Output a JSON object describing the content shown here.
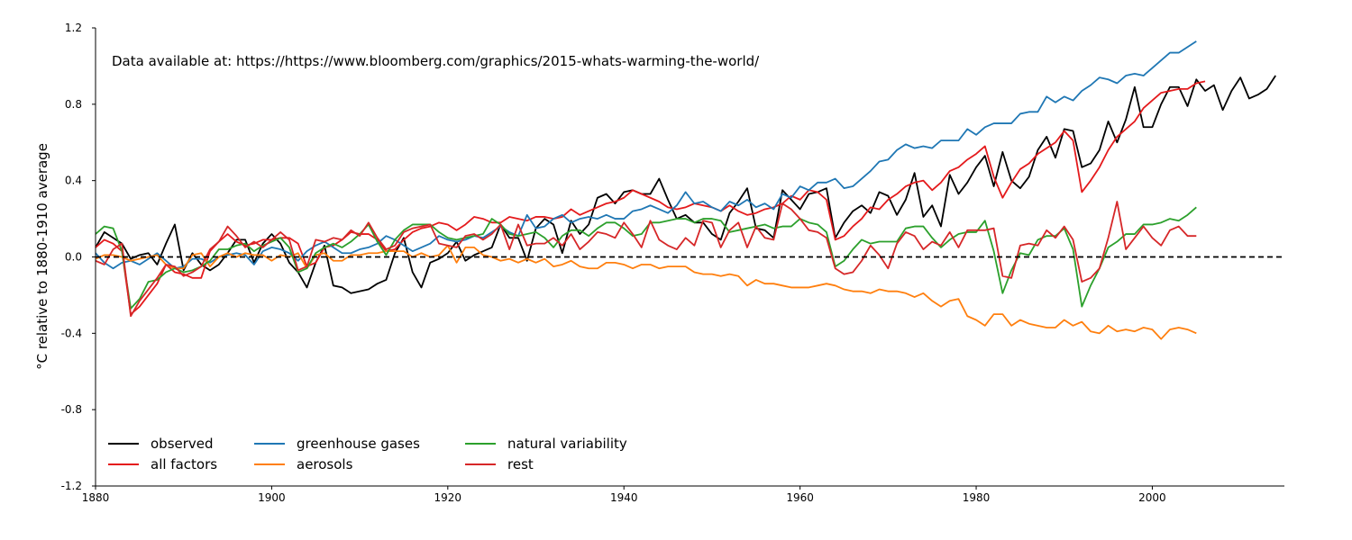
{
  "chart_data": {
    "type": "line",
    "title": "",
    "annotation": "Data available at: https://https://www.bloomberg.com/graphics/2015-whats-warming-the-world/",
    "xlabel": "",
    "ylabel": "$^\\circ C$ relative to 1880-1910 average",
    "ylabel_display": "°C relative to 1880-1910 average",
    "xlim": [
      1880,
      2015
    ],
    "ylim": [
      -1.2,
      1.2
    ],
    "x_ticks": [
      1880,
      1900,
      1920,
      1940,
      1960,
      1980,
      2000
    ],
    "x_tick_labels": [
      "1880",
      "1900",
      "1920",
      "1940",
      "1960",
      "1980",
      "2000"
    ],
    "y_ticks": [
      -1.2,
      -0.8,
      -0.4,
      0.0,
      0.4,
      0.8,
      1.2
    ],
    "y_tick_labels": [
      "-1.2",
      "-0.8",
      "-0.4",
      "0.0",
      "0.4",
      "0.8",
      "1.2"
    ],
    "reference_line": {
      "y": 0.0,
      "style": "dashed",
      "color": "#000000"
    },
    "grid": false,
    "legend": {
      "placement": "bottom-left",
      "columns": 3
    },
    "series": [
      {
        "name": "observed",
        "color": "#000000",
        "x_start": 1880,
        "values": [
          0.05,
          0.13,
          0.1,
          0.07,
          -0.01,
          0.01,
          0.02,
          -0.04,
          0.07,
          0.17,
          -0.07,
          0.02,
          -0.04,
          -0.07,
          -0.04,
          0.02,
          0.09,
          0.09,
          -0.03,
          0.07,
          0.12,
          0.07,
          -0.03,
          -0.08,
          -0.16,
          -0.03,
          0.06,
          -0.15,
          -0.16,
          -0.19,
          -0.18,
          -0.17,
          -0.14,
          -0.12,
          0.02,
          0.1,
          -0.08,
          -0.16,
          -0.03,
          -0.01,
          0.02,
          0.08,
          -0.02,
          0.01,
          0.03,
          0.05,
          0.17,
          0.1,
          0.1,
          -0.02,
          0.15,
          0.2,
          0.17,
          0.02,
          0.19,
          0.12,
          0.17,
          0.31,
          0.33,
          0.28,
          0.34,
          0.35,
          0.33,
          0.33,
          0.41,
          0.3,
          0.2,
          0.22,
          0.18,
          0.18,
          0.12,
          0.09,
          0.23,
          0.29,
          0.36,
          0.15,
          0.14,
          0.1,
          0.35,
          0.3,
          0.25,
          0.33,
          0.34,
          0.36,
          0.1,
          0.18,
          0.24,
          0.27,
          0.23,
          0.34,
          0.32,
          0.22,
          0.3,
          0.44,
          0.21,
          0.27,
          0.16,
          0.43,
          0.33,
          0.39,
          0.47,
          0.53,
          0.37,
          0.55,
          0.4,
          0.36,
          0.42,
          0.56,
          0.63,
          0.52,
          0.67,
          0.66,
          0.47,
          0.49,
          0.56,
          0.71,
          0.6,
          0.72,
          0.89,
          0.68,
          0.68,
          0.8,
          0.89,
          0.89,
          0.79,
          0.93,
          0.87,
          0.9,
          0.77,
          0.87,
          0.94,
          0.83,
          0.85,
          0.88,
          0.95
        ]
      },
      {
        "name": "all factors",
        "color": "#e41a1c",
        "x_start": 1880,
        "values": [
          0.05,
          0.09,
          0.07,
          0.03,
          -0.3,
          -0.26,
          -0.2,
          -0.14,
          -0.04,
          -0.08,
          -0.09,
          -0.11,
          -0.11,
          0.03,
          0.08,
          0.12,
          0.08,
          0.06,
          0.07,
          0.09,
          0.09,
          0.1,
          0.1,
          0.07,
          -0.05,
          -0.03,
          0.05,
          0.06,
          0.09,
          0.13,
          0.12,
          0.12,
          0.09,
          0.03,
          0.04,
          0.09,
          0.13,
          0.15,
          0.16,
          0.18,
          0.17,
          0.14,
          0.17,
          0.21,
          0.2,
          0.18,
          0.18,
          0.21,
          0.2,
          0.19,
          0.21,
          0.21,
          0.2,
          0.21,
          0.25,
          0.22,
          0.24,
          0.26,
          0.28,
          0.29,
          0.31,
          0.35,
          0.33,
          0.31,
          0.29,
          0.26,
          0.25,
          0.26,
          0.28,
          0.27,
          0.26,
          0.24,
          0.27,
          0.24,
          0.22,
          0.23,
          0.25,
          0.26,
          0.28,
          0.32,
          0.3,
          0.35,
          0.34,
          0.3,
          0.09,
          0.11,
          0.16,
          0.2,
          0.26,
          0.25,
          0.3,
          0.33,
          0.37,
          0.39,
          0.4,
          0.35,
          0.39,
          0.45,
          0.47,
          0.51,
          0.54,
          0.58,
          0.42,
          0.31,
          0.39,
          0.46,
          0.49,
          0.54,
          0.57,
          0.6,
          0.66,
          0.61,
          0.34,
          0.4,
          0.47,
          0.56,
          0.63,
          0.67,
          0.71,
          0.78,
          0.82,
          0.86,
          0.87,
          0.88,
          0.88,
          0.91,
          0.92
        ]
      },
      {
        "name": "greenhouse gases",
        "color": "#1f77b4",
        "x_start": 1880,
        "values": [
          0.02,
          -0.03,
          -0.06,
          -0.03,
          -0.02,
          -0.04,
          -0.01,
          0.02,
          -0.02,
          -0.06,
          -0.05,
          -0.01,
          -0.01,
          -0.03,
          0.0,
          0.01,
          0.02,
          0.01,
          -0.04,
          0.03,
          0.05,
          0.04,
          0.02,
          -0.02,
          0.03,
          0.06,
          0.08,
          0.05,
          0.02,
          0.02,
          0.04,
          0.05,
          0.07,
          0.11,
          0.09,
          0.06,
          0.03,
          0.05,
          0.07,
          0.11,
          0.09,
          0.08,
          0.09,
          0.11,
          0.1,
          0.13,
          0.16,
          0.13,
          0.11,
          0.22,
          0.15,
          0.16,
          0.2,
          0.22,
          0.18,
          0.2,
          0.21,
          0.2,
          0.22,
          0.2,
          0.2,
          0.24,
          0.25,
          0.27,
          0.25,
          0.23,
          0.27,
          0.34,
          0.28,
          0.29,
          0.26,
          0.24,
          0.29,
          0.27,
          0.3,
          0.26,
          0.28,
          0.25,
          0.33,
          0.31,
          0.37,
          0.35,
          0.39,
          0.39,
          0.41,
          0.36,
          0.37,
          0.41,
          0.45,
          0.5,
          0.51,
          0.56,
          0.59,
          0.57,
          0.58,
          0.57,
          0.61,
          0.61,
          0.61,
          0.67,
          0.64,
          0.68,
          0.7,
          0.7,
          0.7,
          0.75,
          0.76,
          0.76,
          0.84,
          0.81,
          0.84,
          0.82,
          0.87,
          0.9,
          0.94,
          0.93,
          0.91,
          0.95,
          0.96,
          0.95,
          0.99,
          1.03,
          1.07,
          1.07,
          1.1,
          1.13
        ]
      },
      {
        "name": "aerosols",
        "color": "#ff7f0e",
        "x_start": 1880,
        "values": [
          -0.01,
          0.01,
          0.01,
          0.0,
          -0.02,
          -0.01,
          0.0,
          0.01,
          -0.04,
          -0.06,
          -0.06,
          0.01,
          0.02,
          -0.05,
          0.0,
          0.02,
          0.0,
          0.02,
          0.01,
          0.01,
          -0.02,
          0.01,
          0.0,
          0.02,
          -0.06,
          0.01,
          0.02,
          -0.02,
          -0.02,
          0.01,
          0.01,
          0.02,
          0.02,
          0.03,
          0.03,
          0.03,
          0.0,
          0.02,
          0.0,
          0.01,
          0.06,
          -0.03,
          0.05,
          0.05,
          0.01,
          0.0,
          -0.02,
          -0.01,
          -0.03,
          -0.01,
          -0.03,
          -0.01,
          -0.05,
          -0.04,
          -0.02,
          -0.05,
          -0.06,
          -0.06,
          -0.03,
          -0.03,
          -0.04,
          -0.06,
          -0.04,
          -0.04,
          -0.06,
          -0.05,
          -0.05,
          -0.05,
          -0.08,
          -0.09,
          -0.09,
          -0.1,
          -0.09,
          -0.1,
          -0.15,
          -0.12,
          -0.14,
          -0.14,
          -0.15,
          -0.16,
          -0.16,
          -0.16,
          -0.15,
          -0.14,
          -0.15,
          -0.17,
          -0.18,
          -0.18,
          -0.19,
          -0.17,
          -0.18,
          -0.18,
          -0.19,
          -0.21,
          -0.19,
          -0.23,
          -0.26,
          -0.23,
          -0.22,
          -0.31,
          -0.33,
          -0.36,
          -0.3,
          -0.3,
          -0.36,
          -0.33,
          -0.35,
          -0.36,
          -0.37,
          -0.37,
          -0.33,
          -0.36,
          -0.34,
          -0.39,
          -0.4,
          -0.36,
          -0.39,
          -0.38,
          -0.39,
          -0.37,
          -0.38,
          -0.43,
          -0.38,
          -0.37,
          -0.38,
          -0.4
        ]
      },
      {
        "name": "natural variability",
        "color": "#2ca02c",
        "x_start": 1880,
        "values": [
          0.12,
          0.16,
          0.15,
          0.03,
          -0.27,
          -0.22,
          -0.13,
          -0.12,
          -0.08,
          -0.06,
          -0.08,
          -0.07,
          -0.05,
          -0.02,
          0.04,
          0.04,
          0.06,
          0.07,
          0.03,
          0.06,
          0.08,
          0.1,
          0.05,
          -0.08,
          -0.06,
          0.02,
          0.05,
          0.07,
          0.05,
          0.08,
          0.12,
          0.17,
          0.08,
          0.01,
          0.09,
          0.14,
          0.17,
          0.17,
          0.17,
          0.13,
          0.1,
          0.09,
          0.1,
          0.11,
          0.12,
          0.2,
          0.17,
          0.12,
          0.11,
          0.12,
          0.13,
          0.1,
          0.05,
          0.11,
          0.14,
          0.14,
          0.11,
          0.15,
          0.18,
          0.18,
          0.15,
          0.11,
          0.12,
          0.18,
          0.18,
          0.19,
          0.2,
          0.2,
          0.18,
          0.2,
          0.2,
          0.19,
          0.13,
          0.14,
          0.15,
          0.16,
          0.17,
          0.15,
          0.16,
          0.16,
          0.2,
          0.18,
          0.17,
          0.13,
          -0.05,
          -0.02,
          0.04,
          0.09,
          0.07,
          0.08,
          0.08,
          0.08,
          0.15,
          0.16,
          0.16,
          0.1,
          0.05,
          0.09,
          0.12,
          0.13,
          0.13,
          0.19,
          0.03,
          -0.19,
          -0.07,
          0.02,
          0.01,
          0.09,
          0.11,
          0.11,
          0.15,
          0.04,
          -0.26,
          -0.15,
          -0.06,
          0.05,
          0.08,
          0.12,
          0.12,
          0.17,
          0.17,
          0.18,
          0.2,
          0.19,
          0.22,
          0.26
        ]
      },
      {
        "name": "rest",
        "color": "#d62728",
        "x_start": 1880,
        "values": [
          -0.02,
          -0.04,
          0.04,
          0.07,
          -0.31,
          -0.23,
          -0.17,
          -0.11,
          -0.04,
          -0.05,
          -0.1,
          -0.08,
          -0.05,
          0.04,
          0.08,
          0.16,
          0.11,
          0.05,
          0.08,
          0.05,
          0.09,
          0.13,
          0.09,
          -0.07,
          -0.05,
          0.09,
          0.08,
          0.1,
          0.09,
          0.14,
          0.11,
          0.18,
          0.1,
          0.04,
          0.06,
          0.13,
          0.15,
          0.16,
          0.17,
          0.07,
          0.06,
          0.05,
          0.11,
          0.12,
          0.09,
          0.12,
          0.17,
          0.04,
          0.17,
          0.06,
          0.07,
          0.07,
          0.1,
          0.06,
          0.12,
          0.04,
          0.08,
          0.13,
          0.12,
          0.1,
          0.18,
          0.12,
          0.05,
          0.19,
          0.09,
          0.06,
          0.04,
          0.1,
          0.06,
          0.19,
          0.18,
          0.05,
          0.14,
          0.18,
          0.05,
          0.16,
          0.1,
          0.09,
          0.28,
          0.25,
          0.2,
          0.14,
          0.13,
          0.1,
          -0.06,
          -0.09,
          -0.08,
          -0.02,
          0.06,
          0.01,
          -0.06,
          0.07,
          0.13,
          0.11,
          0.04,
          0.08,
          0.06,
          0.13,
          0.05,
          0.14,
          0.14,
          0.14,
          0.15,
          -0.1,
          -0.11,
          0.06,
          0.07,
          0.06,
          0.14,
          0.1,
          0.16,
          0.09,
          -0.13,
          -0.11,
          -0.06,
          0.1,
          0.29,
          0.04,
          0.1,
          0.16,
          0.1,
          0.06,
          0.14,
          0.16,
          0.11,
          0.11
        ]
      }
    ]
  }
}
